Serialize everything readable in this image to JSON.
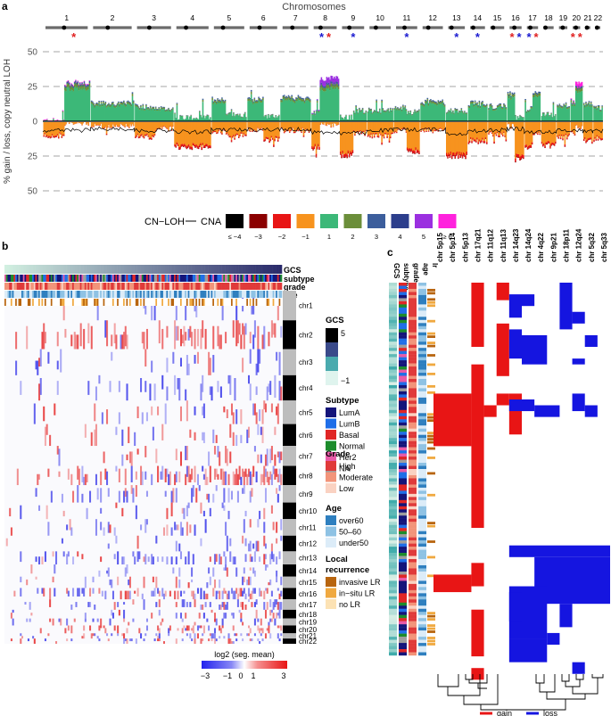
{
  "panel_labels": {
    "a": "a",
    "b": "b",
    "c": "c"
  },
  "panel_a": {
    "top_title": "Chromosomes",
    "chromosomes": [
      "1",
      "2",
      "3",
      "4",
      "5",
      "6",
      "7",
      "8",
      "9",
      "10",
      "11",
      "12",
      "13",
      "14",
      "15",
      "16",
      "17",
      "18",
      "19",
      "20",
      "21",
      "22"
    ],
    "y_axis_label": "% gain / loss, copy neutral LOH",
    "y_ticks": [
      "50",
      "25",
      "0",
      "25",
      "50"
    ],
    "star": "*",
    "star_marks": [
      {
        "chr": "1",
        "colors": [
          "#e02020"
        ]
      },
      {
        "chr": "8",
        "colors": [
          "#1a1ad0",
          "#e02020"
        ]
      },
      {
        "chr": "9",
        "colors": [
          "#1a1ad0"
        ]
      },
      {
        "chr": "11",
        "colors": [
          "#1a1ad0"
        ]
      },
      {
        "chr": "13",
        "colors": [
          "#1a1ad0"
        ]
      },
      {
        "chr": "14",
        "colors": [
          "#1a1ad0"
        ]
      },
      {
        "chr": "16",
        "colors": [
          "#e02020",
          "#1a1ad0"
        ]
      },
      {
        "chr": "17",
        "colors": [
          "#1a1ad0",
          "#e02020"
        ]
      },
      {
        "chr": "20",
        "colors": [
          "#e02020",
          "#e02020"
        ]
      }
    ],
    "legend_cnloh": "CN−LOH",
    "legend_cna_title": "CNA",
    "cna_levels": [
      {
        "label": "≤ −4",
        "color": "#000000"
      },
      {
        "label": "−3",
        "color": "#8b0000"
      },
      {
        "label": "−2",
        "color": "#e81515"
      },
      {
        "label": "−1",
        "color": "#f7931e"
      },
      {
        "label": "1",
        "color": "#3cb878"
      },
      {
        "label": "2",
        "color": "#6b8e3a"
      },
      {
        "label": "3",
        "color": "#3c5e9c"
      },
      {
        "label": "4",
        "color": "#2c3e8c"
      },
      {
        "label": "5",
        "color": "#9b30e0"
      },
      {
        "label": "≥ 6",
        "color": "#ff22dd"
      }
    ]
  },
  "panel_b": {
    "track_labels": [
      "GCS",
      "subtype",
      "grade",
      "age",
      "lr"
    ],
    "chromosomes": [
      "chr1",
      "chr2",
      "chr3",
      "chr4",
      "chr5",
      "chr6",
      "chr7",
      "chr8",
      "chr9",
      "chr10",
      "chr11",
      "chr12",
      "chr13",
      "chr14",
      "chr15",
      "chr16",
      "chr17",
      "chr18",
      "chr19",
      "chr20",
      "chr21",
      "chr22"
    ],
    "color_scale_title": "log2 (seg. mean)",
    "color_scale_ticks": [
      "−3",
      "−1",
      "0",
      "1",
      "3"
    ],
    "legends": {
      "gcs": {
        "title": "GCS",
        "ticks": [
          "5",
          "−1"
        ]
      },
      "subtype": {
        "title": "Subtype",
        "items": [
          {
            "label": "LumA",
            "color": "#14147a"
          },
          {
            "label": "LumB",
            "color": "#1f6ee8"
          },
          {
            "label": "Basal",
            "color": "#e02626"
          },
          {
            "label": "Normal",
            "color": "#1c8c2c"
          },
          {
            "label": "Her2",
            "color": "#e85aa8"
          },
          {
            "label": "NA",
            "color": "#9e9e9e"
          }
        ]
      },
      "grade": {
        "title": "Grade",
        "items": [
          {
            "label": "High",
            "color": "#e03a3a"
          },
          {
            "label": "Moderate",
            "color": "#f2947a"
          },
          {
            "label": "Low",
            "color": "#fad2c2"
          }
        ]
      },
      "age": {
        "title": "Age",
        "items": [
          {
            "label": "over60",
            "color": "#2e7fbf"
          },
          {
            "label": "50–60",
            "color": "#8ec2e4"
          },
          {
            "label": "under50",
            "color": "#dcecf8"
          }
        ]
      },
      "lr": {
        "title_line1": "Local",
        "title_line2": "recurrence",
        "items": [
          {
            "label": "invasive LR",
            "color": "#b8650f"
          },
          {
            "label": "in−situ LR",
            "color": "#f0a940"
          },
          {
            "label": "no LR",
            "color": "#fce2b4"
          }
        ]
      }
    }
  },
  "panel_c": {
    "track_labels": [
      "GCS",
      "subtype",
      "grade",
      "age",
      "lr"
    ],
    "regions": [
      "chr 5p15",
      "chr 5p14",
      "chr 5p13",
      "chr 17q21",
      "chr 11q12",
      "chr 11q13",
      "chr 14q23",
      "chr 14q24",
      "chr 4q22",
      "chr 9p21",
      "chr 18p11",
      "chr 12q24",
      "chr 5q32",
      "chr 5q33"
    ],
    "legend": [
      {
        "label": "gain",
        "color": "#e81515"
      },
      {
        "label": "loss",
        "color": "#1515e0"
      }
    ]
  }
}
